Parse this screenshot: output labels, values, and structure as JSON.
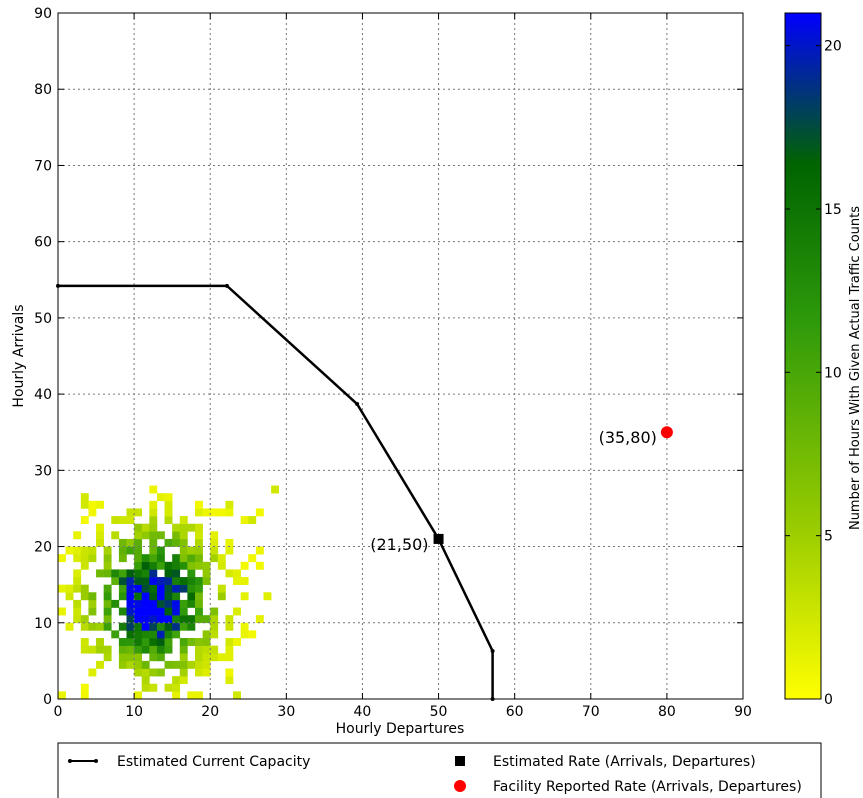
{
  "chart_data": {
    "type": "scatter",
    "xlabel": "Hourly Departures",
    "ylabel": "Hourly Arrivals",
    "xlim": [
      0,
      90
    ],
    "ylim": [
      0,
      90
    ],
    "x_ticks": [
      "0",
      "10",
      "20",
      "30",
      "40",
      "50",
      "60",
      "70",
      "80",
      "90"
    ],
    "y_ticks": [
      "0",
      "10",
      "20",
      "30",
      "40",
      "50",
      "60",
      "70",
      "80",
      "90"
    ],
    "grid": true,
    "colorbar": {
      "label": "Number of Hours With Given Actual Traffic Counts",
      "range": [
        0,
        21
      ],
      "ticks": [
        "0",
        "5",
        "10",
        "15",
        "20"
      ],
      "colors": [
        "#ffff00",
        "#99cc00",
        "#008000",
        "#0000ff"
      ]
    },
    "series": [
      {
        "name": "Estimated Current Capacity",
        "kind": "line",
        "color": "#000000",
        "points": [
          [
            0,
            54.2
          ],
          [
            22.2,
            54.2
          ],
          [
            39.3,
            38.7
          ],
          [
            50,
            21
          ],
          [
            57.1,
            6.3
          ],
          [
            57.1,
            0
          ]
        ]
      },
      {
        "name": "Estimated Rate (Arrivals, Departures)",
        "kind": "marker",
        "marker": "square",
        "color": "#000000",
        "points": [
          [
            50,
            21
          ]
        ]
      },
      {
        "name": "Facility Reported Rate (Arrivals, Departures)",
        "kind": "marker",
        "marker": "circle",
        "color": "#ff0000",
        "points": [
          [
            80,
            35
          ]
        ]
      }
    ],
    "annotations": [
      {
        "text": "(21,50)",
        "x": 50,
        "y": 21
      },
      {
        "text": "(35,80)",
        "x": 80,
        "y": 35
      }
    ],
    "heatmap": {
      "x_range": [
        0,
        30
      ],
      "y_range": [
        0,
        28
      ],
      "peak": {
        "x": 12.5,
        "y": 13,
        "count": 21
      }
    },
    "legend": {
      "placement": "bottom",
      "entries": [
        {
          "label": "Estimated Current Capacity"
        },
        {
          "label": "Estimated Rate (Arrivals, Departures)"
        },
        {
          "label": "Facility Reported Rate (Arrivals, Departures)"
        }
      ]
    }
  }
}
